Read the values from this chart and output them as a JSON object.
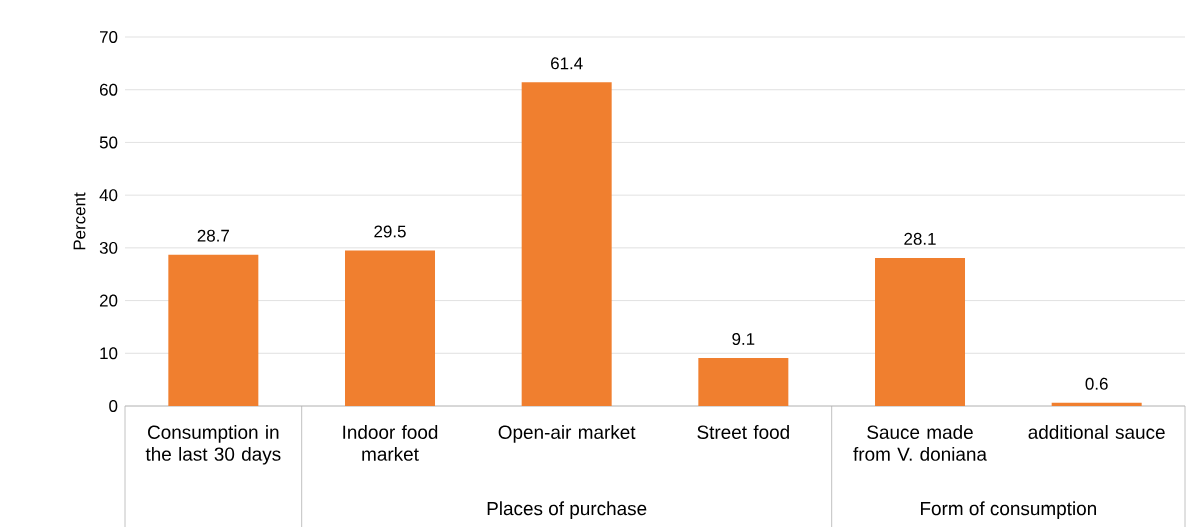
{
  "chart_data": {
    "type": "bar",
    "ylabel": "Percent",
    "categories": [
      "Consumption in the last 30 days",
      "Indoor food market",
      "Open-air market",
      "Street food",
      "Sauce made from V. doniana",
      "additional sauce"
    ],
    "values": [
      28.7,
      29.5,
      61.4,
      9.1,
      28.1,
      0.6
    ],
    "color": "#f07f2f",
    "ylim": [
      0,
      70
    ],
    "yticks": [
      0,
      10,
      20,
      30,
      40,
      50,
      60,
      70
    ],
    "grid": "y",
    "data_labels": true,
    "annotations": [
      "Places of purchase",
      "Form of consumption"
    ]
  }
}
